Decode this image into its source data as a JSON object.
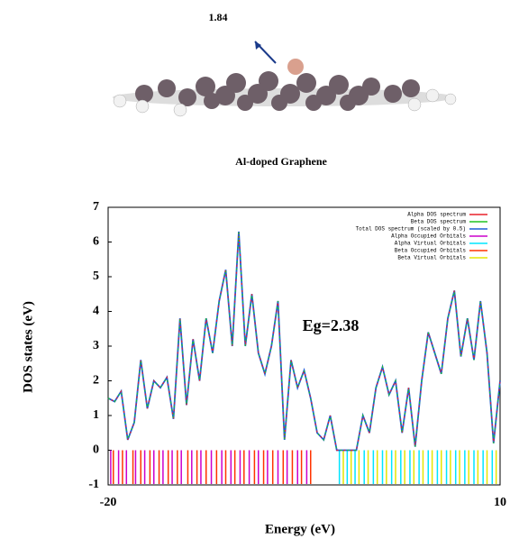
{
  "figure_label": "1.84",
  "molecule_caption": "Al-doped Graphene",
  "chart_data": {
    "type": "line",
    "x": [
      -20,
      -19.5,
      -19,
      -18.5,
      -18,
      -17.5,
      -17,
      -16.5,
      -16,
      -15.5,
      -15,
      -14.5,
      -14,
      -13.5,
      -13,
      -12.5,
      -12,
      -11.5,
      -11,
      -10.5,
      -10,
      -9.5,
      -9,
      -8.5,
      -8,
      -7.5,
      -7,
      -6.5,
      -6,
      -5.5,
      -5,
      -4.5,
      -4,
      -3.5,
      -3,
      -2.5,
      -2,
      -1.5,
      -1,
      -0.5,
      0,
      0.5,
      1,
      1.5,
      2,
      2.5,
      3,
      3.5,
      4,
      4.5,
      5,
      5.5,
      6,
      6.5,
      7,
      7.5,
      8,
      8.5,
      9,
      9.5,
      10
    ],
    "series": [
      {
        "name": "Total DOS spectrum (scaled by 0.5)",
        "color": "#1f5fd6",
        "values": [
          1.5,
          1.4,
          1.7,
          0.3,
          0.8,
          2.6,
          1.2,
          2.0,
          1.8,
          2.1,
          0.9,
          3.8,
          1.3,
          3.2,
          2.0,
          3.8,
          2.8,
          4.3,
          5.2,
          3.0,
          6.3,
          3.0,
          4.5,
          2.8,
          2.2,
          3.0,
          4.3,
          0.3,
          2.6,
          1.8,
          2.3,
          1.5,
          0.5,
          0.3,
          1.0,
          0.0,
          0.0,
          0.0,
          0.0,
          1.0,
          0.5,
          1.8,
          2.4,
          1.6,
          2.0,
          0.5,
          1.8,
          0.1,
          2.0,
          3.4,
          2.8,
          2.2,
          3.8,
          4.6,
          2.7,
          3.8,
          2.6,
          4.3,
          2.8,
          0.2,
          2.0
        ]
      },
      {
        "name": "Alpha DOS spectrum",
        "color": "#e8202a",
        "values": [
          1.5,
          1.4,
          1.7,
          0.3,
          0.8,
          2.6,
          1.2,
          2.0,
          1.8,
          2.1,
          0.9,
          3.8,
          1.3,
          3.2,
          2.0,
          3.8,
          2.8,
          4.3,
          5.2,
          3.0,
          6.3,
          3.0,
          4.5,
          2.8,
          2.2,
          3.0,
          4.3,
          0.3,
          2.6,
          1.8,
          2.3,
          1.5,
          0.5,
          0.3,
          1.0,
          0.0,
          0.0,
          0.0,
          0.0,
          1.0,
          0.5,
          1.8,
          2.4,
          1.6,
          2.0,
          0.5,
          1.8,
          0.1,
          2.0,
          3.4,
          2.8,
          2.2,
          3.8,
          4.6,
          2.7,
          3.8,
          2.6,
          4.3,
          2.8,
          0.2,
          2.0
        ]
      },
      {
        "name": "Beta DOS spectrum",
        "color": "#22c422",
        "values": [
          1.5,
          1.4,
          1.7,
          0.3,
          0.8,
          2.6,
          1.2,
          2.0,
          1.8,
          2.1,
          0.9,
          3.8,
          1.3,
          3.2,
          2.0,
          3.8,
          2.8,
          4.3,
          5.2,
          3.0,
          6.3,
          3.0,
          4.5,
          2.8,
          2.2,
          3.0,
          4.3,
          0.3,
          2.6,
          1.8,
          2.3,
          1.5,
          0.5,
          0.3,
          1.0,
          0.0,
          0.0,
          0.0,
          0.0,
          1.0,
          0.5,
          1.8,
          2.4,
          1.6,
          2.0,
          0.5,
          1.8,
          0.1,
          2.0,
          3.4,
          2.8,
          2.2,
          3.8,
          4.6,
          2.7,
          3.8,
          2.6,
          4.3,
          2.8,
          0.2,
          2.0
        ]
      }
    ],
    "orbitals": [
      {
        "name": "Alpha Occupied Orbitals",
        "color": "#cc00cc",
        "x": [
          -19.8,
          -19.2,
          -18.6,
          -17.9,
          -17.2,
          -16.5,
          -15.8,
          -15.1,
          -14.4,
          -13.6,
          -12.9,
          -12.1,
          -11.3,
          -10.6,
          -9.9,
          -9.2,
          -8.5,
          -7.8,
          -7.0,
          -6.3,
          -5.5,
          -4.8
        ]
      },
      {
        "name": "Alpha Virtual Orbitals",
        "color": "#00e5ff",
        "x": [
          -2.3,
          -1.7,
          -1.1,
          -0.4,
          0.3,
          1.0,
          1.7,
          2.4,
          3.1,
          3.8,
          4.5,
          5.2,
          5.9,
          6.6,
          7.3,
          8.0,
          8.7,
          9.4
        ]
      },
      {
        "name": "Beta Occupied Orbitals",
        "color": "#ff3300",
        "x": [
          -19.6,
          -18.9,
          -18.1,
          -17.5,
          -16.8,
          -16.1,
          -15.4,
          -14.7,
          -13.9,
          -13.2,
          -12.5,
          -11.7,
          -11.0,
          -10.3,
          -9.6,
          -8.8,
          -8.1,
          -7.4,
          -6.6,
          -5.9,
          -5.2,
          -4.5
        ]
      },
      {
        "name": "Beta Virtual Orbitals",
        "color": "#e6e600",
        "x": [
          -2.0,
          -1.4,
          -0.8,
          -0.1,
          0.6,
          1.3,
          2.0,
          2.7,
          3.4,
          4.1,
          4.8,
          5.5,
          6.2,
          6.9,
          7.6,
          8.3,
          9.0,
          9.7
        ]
      }
    ],
    "xlim": [
      -20,
      10
    ],
    "ylim": [
      -1,
      7
    ],
    "xticks": [
      -20,
      10
    ],
    "yticks": [
      -1,
      0,
      1,
      2,
      3,
      4,
      5,
      6,
      7
    ],
    "xlabel": "Energy (eV)",
    "ylabel": "DOS states (eV)",
    "annotation": "Eg=2.38",
    "legend": "upper right"
  }
}
